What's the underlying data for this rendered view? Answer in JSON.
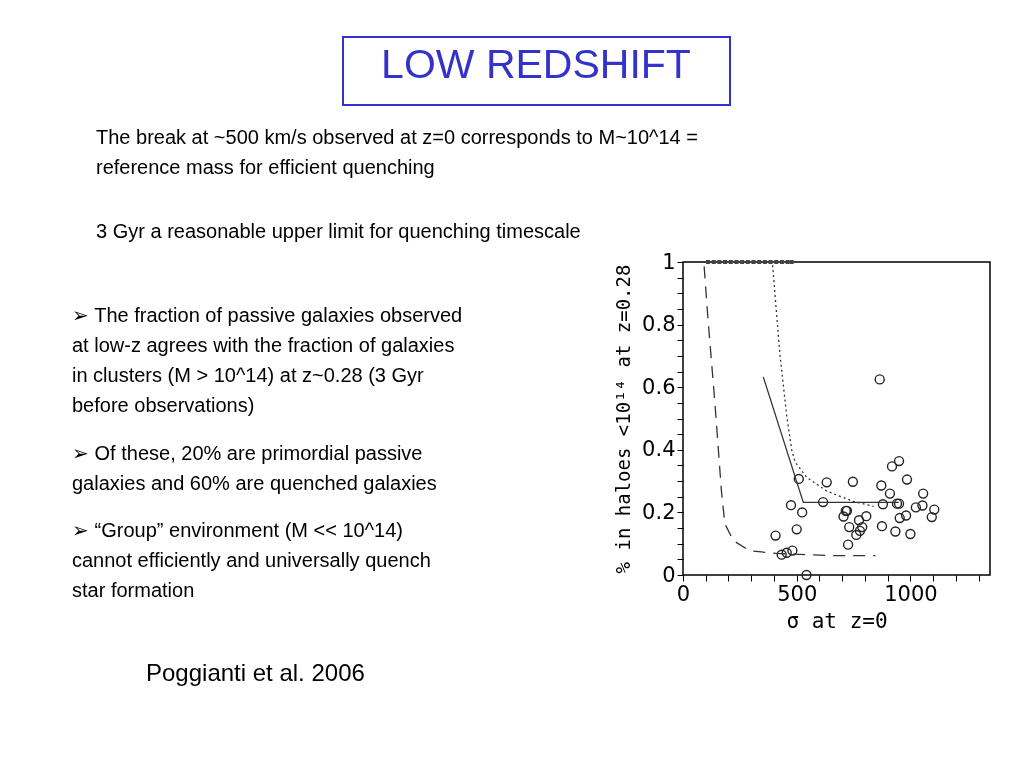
{
  "chart_data": {
    "type": "scatter",
    "title": "LOW REDSHIFT",
    "xlabel": "σ at z=0",
    "ylabel": "% in haloes <10¹⁴ at z=0.28",
    "xlim": [
      0,
      1350
    ],
    "ylim": [
      0,
      1
    ],
    "xticks": [
      0,
      {
        "value": 100,
        "label": null
      },
      {
        "value": 200,
        "label": null
      },
      {
        "value": 300,
        "label": null
      },
      {
        "value": 400,
        "label": null
      },
      500,
      {
        "value": 600,
        "label": null
      },
      {
        "value": 700,
        "label": null
      },
      {
        "value": 800,
        "label": null
      },
      {
        "value": 900,
        "label": null
      },
      1000,
      {
        "value": 1100,
        "label": null
      },
      {
        "value": 1200,
        "label": null
      },
      {
        "value": 1300,
        "label": null
      }
    ],
    "yticks": [
      0,
      {
        "value": 0.05,
        "label": null
      },
      {
        "value": 0.1,
        "label": null
      },
      {
        "value": 0.15,
        "label": null
      },
      0.2,
      {
        "value": 0.25,
        "label": null
      },
      {
        "value": 0.3,
        "label": null
      },
      {
        "value": 0.35,
        "label": null
      },
      0.4,
      {
        "value": 0.45,
        "label": null
      },
      {
        "value": 0.5,
        "label": null
      },
      {
        "value": 0.55,
        "label": null
      },
      0.6,
      {
        "value": 0.65,
        "label": null
      },
      {
        "value": 0.7,
        "label": null
      },
      {
        "value": 0.75,
        "label": null
      },
      0.8,
      {
        "value": 0.85,
        "label": null
      },
      {
        "value": 0.9,
        "label": null
      },
      {
        "value": 0.95,
        "label": null
      },
      1
    ],
    "grid": false,
    "series": [
      {
        "marker": "circle",
        "color": "#222222",
        "x": [
          865,
          509,
          632,
          747,
          872,
          919,
          950,
          985,
          910,
          616,
          475,
          524,
          879,
          941,
          950,
          1056,
          1024,
          1053,
          1105,
          1094,
          981,
          953,
          706,
          721,
          716,
          731,
          774,
          788,
          806,
          762,
          778,
          875,
          934,
          1000,
          726,
          500,
          407,
          434,
          456,
          481,
          543
        ],
        "values": [
          0.625,
          0.307,
          0.296,
          0.298,
          0.286,
          0.347,
          0.364,
          0.305,
          0.26,
          0.233,
          0.223,
          0.2,
          0.226,
          0.228,
          0.228,
          0.26,
          0.216,
          0.222,
          0.209,
          0.185,
          0.19,
          0.182,
          0.187,
          0.205,
          0.205,
          0.153,
          0.175,
          0.153,
          0.188,
          0.128,
          0.141,
          0.156,
          0.139,
          0.131,
          0.097,
          0.146,
          0.126,
          0.065,
          0.071,
          0.078,
          0.0
        ]
      },
      {
        "marker": "square",
        "color": "#444444",
        "x": [
          110,
          135,
          160,
          185,
          210,
          235,
          260,
          285,
          310,
          335,
          360,
          385,
          410,
          435,
          460,
          478
        ],
        "values": [
          1,
          1,
          1,
          1,
          1,
          1,
          1,
          1,
          1,
          1,
          1,
          1,
          1,
          1,
          1,
          1
        ]
      },
      {
        "type": "line",
        "line_style": "solid",
        "color": "#333333",
        "x": [
          353,
          529,
          949
        ],
        "values": [
          0.633,
          0.232,
          0.232
        ]
      },
      {
        "type": "line",
        "line_style": "dotted",
        "color": "#333333",
        "x": [
          394,
          426,
          456,
          478,
          493,
          544,
          632,
          750,
          838
        ],
        "values": [
          0.99,
          0.706,
          0.509,
          0.4,
          0.361,
          0.312,
          0.268,
          0.235,
          0.219
        ]
      },
      {
        "type": "line",
        "line_style": "dashed",
        "color": "#333333",
        "x": [
          93,
          110,
          140,
          169,
          184,
          221,
          294,
          412,
          515,
          662,
          846
        ],
        "values": [
          0.986,
          0.816,
          0.553,
          0.268,
          0.164,
          0.11,
          0.077,
          0.069,
          0.066,
          0.062,
          0.062
        ]
      }
    ],
    "annotations": [
      "The break at ~500 km/s observed at z=0 corresponds to M~10^14  =\nreference mass for efficient quenching",
      "3 Gyr a reasonable upper limit for quenching timescale",
      "➢ The fraction of passive galaxies observed\nat low-z agrees with the fraction of galaxies\nin clusters (M > 10^14) at z~0.28 (3 Gyr\nbefore observations)",
      "➢ Of these,  20% are primordial passive\ngalaxies and 60% are quenched galaxies",
      "➢ “Group” environment (M << 10^14)\ncannot efficiently and universally quench\nstar formation",
      "Poggianti et al. 2006"
    ]
  }
}
